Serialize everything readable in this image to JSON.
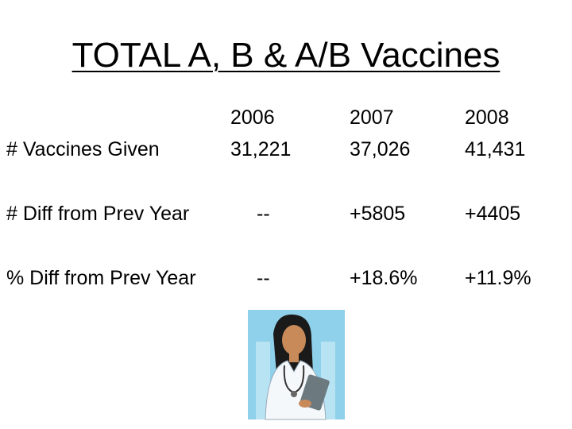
{
  "header": {
    "title": "TOTAL A, B & A/B Vaccines"
  },
  "table": {
    "columns": [
      "2006",
      "2007",
      "2008"
    ],
    "rows": [
      {
        "label": "# Vaccines Given",
        "cells": [
          "31,221",
          "37,026",
          "41,431"
        ]
      },
      {
        "label": "# Diff from Prev Year",
        "cells": [
          "--",
          "+5805",
          "+4405"
        ]
      },
      {
        "label": "% Diff from Prev Year",
        "cells": [
          "--",
          "+18.6%",
          "+11.9%"
        ]
      }
    ]
  }
}
